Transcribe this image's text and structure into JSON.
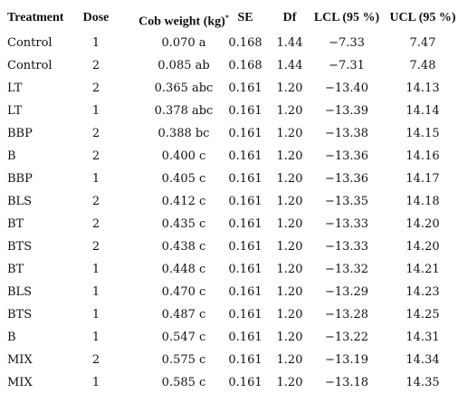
{
  "table": {
    "header": [
      "Treatment",
      "Dose",
      "Cob weight (kg)",
      "SE",
      "Df",
      "LCL (95 %)",
      "UCL (95 %)"
    ],
    "header_note": "*",
    "rows": [
      [
        "Control",
        "1",
        "0.070 a",
        "0.168",
        "1.44",
        "−7.33",
        "7.47"
      ],
      [
        "Control",
        "2",
        "0.085 ab",
        "0.168",
        "1.44",
        "−7.31",
        "7.48"
      ],
      [
        "LT",
        "2",
        "0.365 abc",
        "0.161",
        "1.20",
        "−13.40",
        "14.13"
      ],
      [
        "LT",
        "1",
        "0.378 abc",
        "0.161",
        "1.20",
        "−13.39",
        "14.14"
      ],
      [
        "BBP",
        "2",
        "0.388 bc",
        "0.161",
        "1.20",
        "−13.38",
        "14.15"
      ],
      [
        "B",
        "2",
        "0.400 c",
        "0.161",
        "1.20",
        "−13.36",
        "14.16"
      ],
      [
        "BBP",
        "1",
        "0.405 c",
        "0.161",
        "1.20",
        "−13.36",
        "14.17"
      ],
      [
        "BLS",
        "2",
        "0.412 c",
        "0.161",
        "1.20",
        "−13.35",
        "14.18"
      ],
      [
        "BT",
        "2",
        "0.435 c",
        "0.161",
        "1.20",
        "−13.33",
        "14.20"
      ],
      [
        "BTS",
        "2",
        "0.438 c",
        "0.161",
        "1.20",
        "−13.33",
        "14.20"
      ],
      [
        "BT",
        "1",
        "0.448 c",
        "0.161",
        "1.20",
        "−13.32",
        "14.21"
      ],
      [
        "BLS",
        "1",
        "0.470 c",
        "0.161",
        "1.20",
        "−13.29",
        "14.23"
      ],
      [
        "BTS",
        "1",
        "0.487 c",
        "0.161",
        "1.20",
        "−13.28",
        "14.25"
      ],
      [
        "B",
        "1",
        "0.547 c",
        "0.161",
        "1.20",
        "−13.22",
        "14.31"
      ],
      [
        "MIX",
        "2",
        "0.575 c",
        "0.161",
        "1.20",
        "−13.19",
        "14.34"
      ],
      [
        "MIX",
        "1",
        "0.585 c",
        "0.161",
        "1.20",
        "−13.18",
        "14.35"
      ]
    ]
  }
}
